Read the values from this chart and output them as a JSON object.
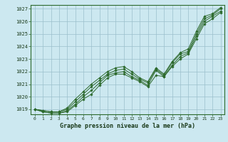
{
  "title": "Graphe pression niveau de la mer (hPa)",
  "bg_color": "#cce8f0",
  "grid_color": "#9bbfcc",
  "line_color": "#2d6a2d",
  "marker_color": "#2d6a2d",
  "xlim": [
    -0.5,
    23.5
  ],
  "ylim": [
    1018.6,
    1027.3
  ],
  "xticks": [
    0,
    1,
    2,
    3,
    4,
    5,
    6,
    7,
    8,
    9,
    10,
    11,
    12,
    13,
    14,
    15,
    16,
    17,
    18,
    19,
    20,
    21,
    22,
    23
  ],
  "yticks": [
    1019,
    1020,
    1021,
    1022,
    1023,
    1024,
    1025,
    1026,
    1027
  ],
  "series": [
    [
      1019.0,
      1018.8,
      1018.7,
      1018.7,
      1018.8,
      1019.3,
      1019.8,
      1020.2,
      1020.9,
      1021.5,
      1021.8,
      1021.8,
      1021.5,
      1021.2,
      1020.8,
      1021.7,
      1021.6,
      1022.4,
      1023.0,
      1023.4,
      1024.6,
      1025.8,
      1026.2,
      1026.7
    ],
    [
      1019.0,
      1018.8,
      1018.7,
      1018.7,
      1018.9,
      1019.4,
      1020.0,
      1020.5,
      1021.1,
      1021.7,
      1021.9,
      1022.0,
      1021.6,
      1021.3,
      1020.9,
      1022.1,
      1021.6,
      1022.5,
      1023.2,
      1023.5,
      1024.8,
      1026.0,
      1026.4,
      1026.8
    ],
    [
      1019.0,
      1018.9,
      1018.8,
      1018.8,
      1019.0,
      1019.6,
      1020.2,
      1020.8,
      1021.3,
      1021.8,
      1022.1,
      1022.2,
      1021.8,
      1021.4,
      1021.1,
      1022.2,
      1021.7,
      1022.7,
      1023.4,
      1023.6,
      1025.0,
      1026.2,
      1026.5,
      1027.0
    ],
    [
      1019.0,
      1018.9,
      1018.8,
      1018.8,
      1019.1,
      1019.8,
      1020.4,
      1021.0,
      1021.5,
      1022.0,
      1022.3,
      1022.4,
      1022.0,
      1021.5,
      1021.2,
      1022.3,
      1021.8,
      1022.8,
      1023.5,
      1023.8,
      1025.2,
      1026.4,
      1026.6,
      1027.1
    ]
  ]
}
